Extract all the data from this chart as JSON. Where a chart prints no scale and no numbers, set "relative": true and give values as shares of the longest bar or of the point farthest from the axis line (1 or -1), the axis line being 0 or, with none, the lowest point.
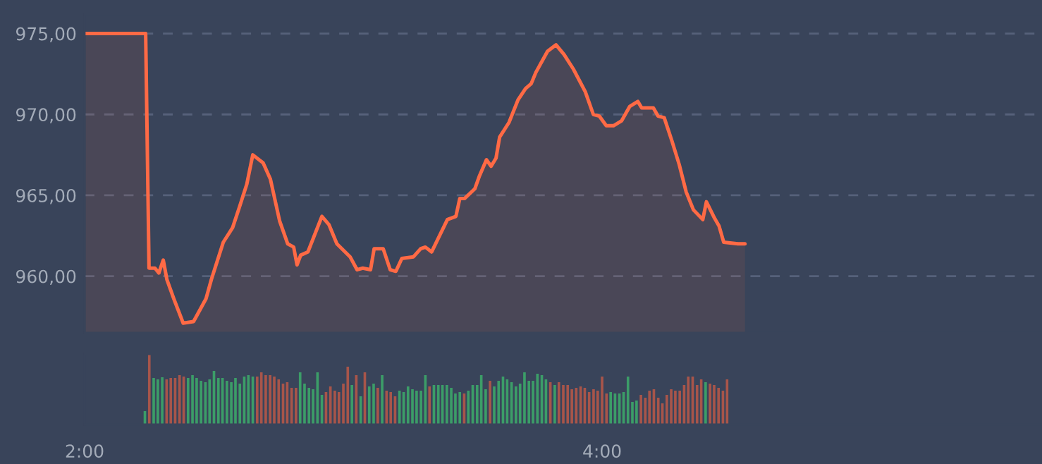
{
  "chart_data": [
    {
      "type": "area",
      "xlim": [
        2.0,
        5.7
      ],
      "ylim": [
        956.5,
        976.2
      ],
      "yticks": [
        {
          "value": 960,
          "label": "960,00"
        },
        {
          "value": 965,
          "label": "965,00"
        },
        {
          "value": 970,
          "label": "970,00"
        },
        {
          "value": 975,
          "label": "975,00"
        }
      ],
      "grid": "y",
      "tick_labels": "y",
      "series": [
        {
          "color": "#ff6a45",
          "x": [
            2.004,
            2.236,
            2.249,
            2.272,
            2.287,
            2.304,
            2.318,
            2.345,
            2.381,
            2.421,
            2.469,
            2.49,
            2.536,
            2.572,
            2.599,
            2.627,
            2.65,
            2.69,
            2.718,
            2.754,
            2.785,
            2.808,
            2.821,
            2.835,
            2.863,
            2.917,
            2.944,
            2.975,
            3.026,
            3.053,
            3.075,
            3.105,
            3.119,
            3.154,
            3.181,
            3.203,
            3.226,
            3.271,
            3.299,
            3.317,
            3.341,
            3.402,
            3.435,
            3.45,
            3.468,
            3.508,
            3.526,
            3.553,
            3.571,
            3.59,
            3.604,
            3.64,
            3.675,
            3.704,
            3.726,
            3.744,
            3.789,
            3.822,
            3.853,
            3.889,
            3.935,
            3.966,
            3.989,
            4.016,
            4.044,
            4.075,
            4.107,
            4.138,
            4.153,
            4.198,
            4.216,
            4.24,
            4.271,
            4.298,
            4.325,
            4.353,
            4.389,
            4.403,
            4.434,
            4.452,
            4.47,
            4.525,
            4.552
          ],
          "values": [
            975,
            975,
            960.5,
            960.5,
            960.2,
            961.0,
            959.8,
            958.6,
            957.1,
            957.2,
            958.6,
            959.8,
            962.1,
            963.0,
            964.3,
            965.7,
            967.5,
            967.0,
            966.0,
            963.4,
            962.0,
            961.8,
            960.7,
            961.3,
            961.5,
            963.7,
            963.2,
            962.0,
            961.2,
            960.4,
            960.5,
            960.4,
            961.7,
            961.7,
            960.4,
            960.3,
            961.1,
            961.2,
            961.7,
            961.8,
            961.5,
            963.5,
            963.7,
            964.8,
            964.8,
            965.4,
            966.2,
            967.2,
            966.8,
            967.3,
            968.6,
            969.5,
            970.9,
            971.6,
            971.9,
            972.6,
            973.9,
            974.3,
            973.7,
            972.8,
            971.4,
            970.0,
            969.9,
            969.3,
            969.3,
            969.6,
            970.5,
            970.8,
            970.4,
            970.4,
            969.9,
            969.8,
            968.3,
            966.9,
            965.2,
            964.1,
            963.5,
            964.6,
            963.6,
            963.1,
            962.1,
            962.0,
            962.0
          ]
        }
      ]
    },
    {
      "type": "bar",
      "relative": true,
      "xlim": [
        2.0,
        5.7
      ],
      "tick_labels": "x",
      "xticks": [
        {
          "value": 2,
          "label": "2:00"
        },
        {
          "value": 4,
          "label": "4:00"
        }
      ],
      "series": [
        {
          "x": [
            2.233,
            2.25,
            2.267,
            2.283,
            2.3,
            2.317,
            2.333,
            2.35,
            2.367,
            2.383,
            2.4,
            2.417,
            2.433,
            2.45,
            2.467,
            2.483,
            2.5,
            2.517,
            2.533,
            2.55,
            2.567,
            2.583,
            2.6,
            2.617,
            2.633,
            2.65,
            2.667,
            2.683,
            2.7,
            2.717,
            2.733,
            2.75,
            2.767,
            2.783,
            2.8,
            2.817,
            2.833,
            2.85,
            2.867,
            2.883,
            2.9,
            2.917,
            2.933,
            2.95,
            2.967,
            2.983,
            3.0,
            3.017,
            3.033,
            3.05,
            3.067,
            3.083,
            3.1,
            3.117,
            3.133,
            3.15,
            3.167,
            3.183,
            3.2,
            3.217,
            3.233,
            3.25,
            3.267,
            3.283,
            3.3,
            3.317,
            3.333,
            3.35,
            3.367,
            3.383,
            3.4,
            3.417,
            3.433,
            3.45,
            3.467,
            3.483,
            3.5,
            3.517,
            3.533,
            3.55,
            3.567,
            3.583,
            3.6,
            3.617,
            3.633,
            3.65,
            3.667,
            3.683,
            3.7,
            3.717,
            3.733,
            3.75,
            3.767,
            3.783,
            3.8,
            3.817,
            3.833,
            3.85,
            3.867,
            3.883,
            3.9,
            3.917,
            3.933,
            3.95,
            3.967,
            3.983,
            4.0,
            4.017,
            4.033,
            4.05,
            4.067,
            4.083,
            4.1,
            4.117,
            4.133,
            4.15,
            4.167,
            4.183,
            4.2,
            4.217,
            4.233,
            4.25,
            4.267,
            4.283,
            4.3,
            4.317,
            4.333,
            4.35,
            4.367,
            4.383,
            4.4,
            4.417,
            4.433,
            4.45,
            4.467,
            4.483
          ],
          "values": [
            0.19,
            1,
            0.66,
            0.64,
            0.67,
            0.64,
            0.66,
            0.66,
            0.7,
            0.68,
            0.66,
            0.7,
            0.66,
            0.62,
            0.6,
            0.64,
            0.76,
            0.66,
            0.66,
            0.62,
            0.6,
            0.66,
            0.58,
            0.68,
            0.7,
            0.68,
            0.68,
            0.74,
            0.7,
            0.7,
            0.68,
            0.64,
            0.58,
            0.6,
            0.52,
            0.52,
            0.74,
            0.58,
            0.52,
            0.5,
            0.74,
            0.42,
            0.46,
            0.54,
            0.48,
            0.46,
            0.58,
            0.82,
            0.56,
            0.7,
            0.4,
            0.74,
            0.54,
            0.58,
            0.52,
            0.7,
            0.48,
            0.46,
            0.4,
            0.48,
            0.46,
            0.54,
            0.5,
            0.48,
            0.48,
            0.7,
            0.54,
            0.56,
            0.56,
            0.56,
            0.56,
            0.52,
            0.44,
            0.46,
            0.44,
            0.48,
            0.56,
            0.56,
            0.7,
            0.5,
            0.62,
            0.54,
            0.62,
            0.68,
            0.64,
            0.6,
            0.54,
            0.58,
            0.74,
            0.62,
            0.62,
            0.72,
            0.7,
            0.64,
            0.6,
            0.56,
            0.6,
            0.56,
            0.56,
            0.5,
            0.52,
            0.54,
            0.52,
            0.46,
            0.5,
            0.48,
            0.68,
            0.44,
            0.46,
            0.44,
            0.44,
            0.46,
            0.68,
            0.32,
            0.34,
            0.42,
            0.38,
            0.48,
            0.5,
            0.38,
            0.3,
            0.42,
            0.5,
            0.48,
            0.48,
            0.56,
            0.68,
            0.68,
            0.56,
            0.64,
            0.6,
            0.58,
            0.56,
            0.52,
            0.48,
            0.64
          ],
          "colors": [
            "#3c9d68",
            "#a8554a",
            "#3c9d68",
            "#3c9d68",
            "#3c9d68",
            "#a8554a",
            "#a8554a",
            "#a8554a",
            "#a8554a",
            "#a8554a",
            "#3c9d68",
            "#3c9d68",
            "#3c9d68",
            "#3c9d68",
            "#3c9d68",
            "#3c9d68",
            "#3c9d68",
            "#3c9d68",
            "#3c9d68",
            "#3c9d68",
            "#3c9d68",
            "#3c9d68",
            "#3c9d68",
            "#3c9d68",
            "#3c9d68",
            "#3c9d68",
            "#a8554a",
            "#a8554a",
            "#a8554a",
            "#a8554a",
            "#a8554a",
            "#a8554a",
            "#a8554a",
            "#a8554a",
            "#a8554a",
            "#a8554a",
            "#3c9d68",
            "#3c9d68",
            "#3c9d68",
            "#3c9d68",
            "#3c9d68",
            "#3c9d68",
            "#a8554a",
            "#a8554a",
            "#a8554a",
            "#a8554a",
            "#a8554a",
            "#a8554a",
            "#3c9d68",
            "#a8554a",
            "#3c9d68",
            "#a8554a",
            "#3c9d68",
            "#3c9d68",
            "#a8554a",
            "#3c9d68",
            "#a8554a",
            "#a8554a",
            "#a8554a",
            "#3c9d68",
            "#3c9d68",
            "#3c9d68",
            "#3c9d68",
            "#3c9d68",
            "#3c9d68",
            "#3c9d68",
            "#a8554a",
            "#3c9d68",
            "#3c9d68",
            "#3c9d68",
            "#3c9d68",
            "#3c9d68",
            "#3c9d68",
            "#3c9d68",
            "#a8554a",
            "#3c9d68",
            "#3c9d68",
            "#3c9d68",
            "#3c9d68",
            "#3c9d68",
            "#a8554a",
            "#3c9d68",
            "#3c9d68",
            "#3c9d68",
            "#3c9d68",
            "#3c9d68",
            "#3c9d68",
            "#3c9d68",
            "#3c9d68",
            "#3c9d68",
            "#3c9d68",
            "#3c9d68",
            "#3c9d68",
            "#3c9d68",
            "#a8554a",
            "#3c9d68",
            "#a8554a",
            "#a8554a",
            "#a8554a",
            "#a8554a",
            "#a8554a",
            "#a8554a",
            "#a8554a",
            "#a8554a",
            "#a8554a",
            "#a8554a",
            "#a8554a",
            "#a8554a",
            "#3c9d68",
            "#3c9d68",
            "#3c9d68",
            "#3c9d68",
            "#3c9d68",
            "#3c9d68",
            "#3c9d68",
            "#a8554a",
            "#a8554a",
            "#a8554a",
            "#a8554a",
            "#a8554a",
            "#a8554a",
            "#a8554a",
            "#a8554a",
            "#a8554a",
            "#a8554a",
            "#a8554a",
            "#a8554a",
            "#a8554a",
            "#a8554a",
            "#a8554a",
            "#3c9d68",
            "#a8554a",
            "#a8554a",
            "#a8554a",
            "#a8554a",
            "#a8554a"
          ]
        }
      ]
    }
  ]
}
